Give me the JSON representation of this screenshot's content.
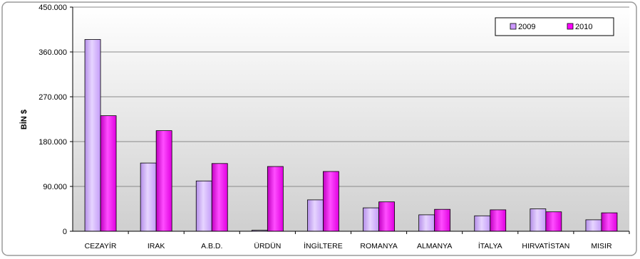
{
  "chart_data": {
    "type": "bar",
    "categories": [
      "CEZAYİR",
      "IRAK",
      "A.B.D.",
      "ÜRDÜN",
      "İNGİLTERE",
      "ROMANYA",
      "ALMANYA",
      "İTALYA",
      "HIRVATİSTAN",
      "MISIR"
    ],
    "series": [
      {
        "name": "2009",
        "values": [
          385000,
          137000,
          101000,
          2000,
          63000,
          47000,
          33000,
          31000,
          45000,
          23000
        ],
        "color": "#cc99ff"
      },
      {
        "name": "2010",
        "values": [
          232000,
          202000,
          136000,
          130000,
          120000,
          59000,
          44000,
          43000,
          39000,
          37000
        ],
        "color": "#ff00ff"
      }
    ],
    "yticks": [
      "0",
      "90.000",
      "180.000",
      "270.000",
      "360.000",
      "450.000"
    ],
    "ylim": [
      0,
      450000
    ],
    "ylabel": "BİN $",
    "grid": true,
    "legend": "top-right"
  }
}
